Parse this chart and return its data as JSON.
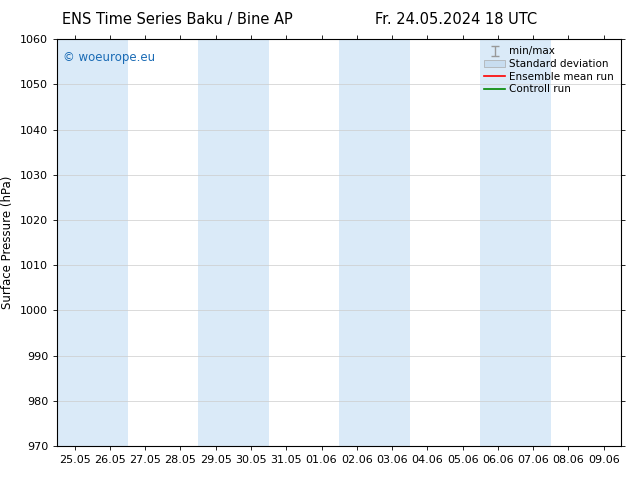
{
  "title_left": "ENS Time Series Baku / Bine AP",
  "title_right": "Fr. 24.05.2024 18 UTC",
  "ylabel": "Surface Pressure (hPa)",
  "ylim": [
    970,
    1060
  ],
  "yticks": [
    970,
    980,
    990,
    1000,
    1010,
    1020,
    1030,
    1040,
    1050,
    1060
  ],
  "x_labels": [
    "25.05",
    "26.05",
    "27.05",
    "28.05",
    "29.05",
    "30.05",
    "31.05",
    "01.06",
    "02.06",
    "03.06",
    "04.06",
    "05.06",
    "06.06",
    "07.06",
    "08.06",
    "09.06"
  ],
  "n_ticks": 16,
  "shaded_columns": [
    0,
    1,
    4,
    5,
    8,
    9,
    12,
    13
  ],
  "shaded_color": "#daeaf8",
  "background_color": "#ffffff",
  "watermark_text": "© woeurope.eu",
  "watermark_color": "#1a6bb5",
  "legend_entries": [
    {
      "label": "min/max",
      "type": "errorbar",
      "color": "#999999"
    },
    {
      "label": "Standard deviation",
      "type": "patch",
      "color": "#c8ddf0"
    },
    {
      "label": "Ensemble mean run",
      "type": "line",
      "color": "#ff0000"
    },
    {
      "label": "Controll run",
      "type": "line",
      "color": "#008800"
    }
  ],
  "title_fontsize": 10.5,
  "tick_fontsize": 8,
  "ylabel_fontsize": 8.5,
  "watermark_fontsize": 8.5,
  "grid_color": "#cccccc",
  "spine_color": "#000000",
  "legend_fontsize": 7.5
}
